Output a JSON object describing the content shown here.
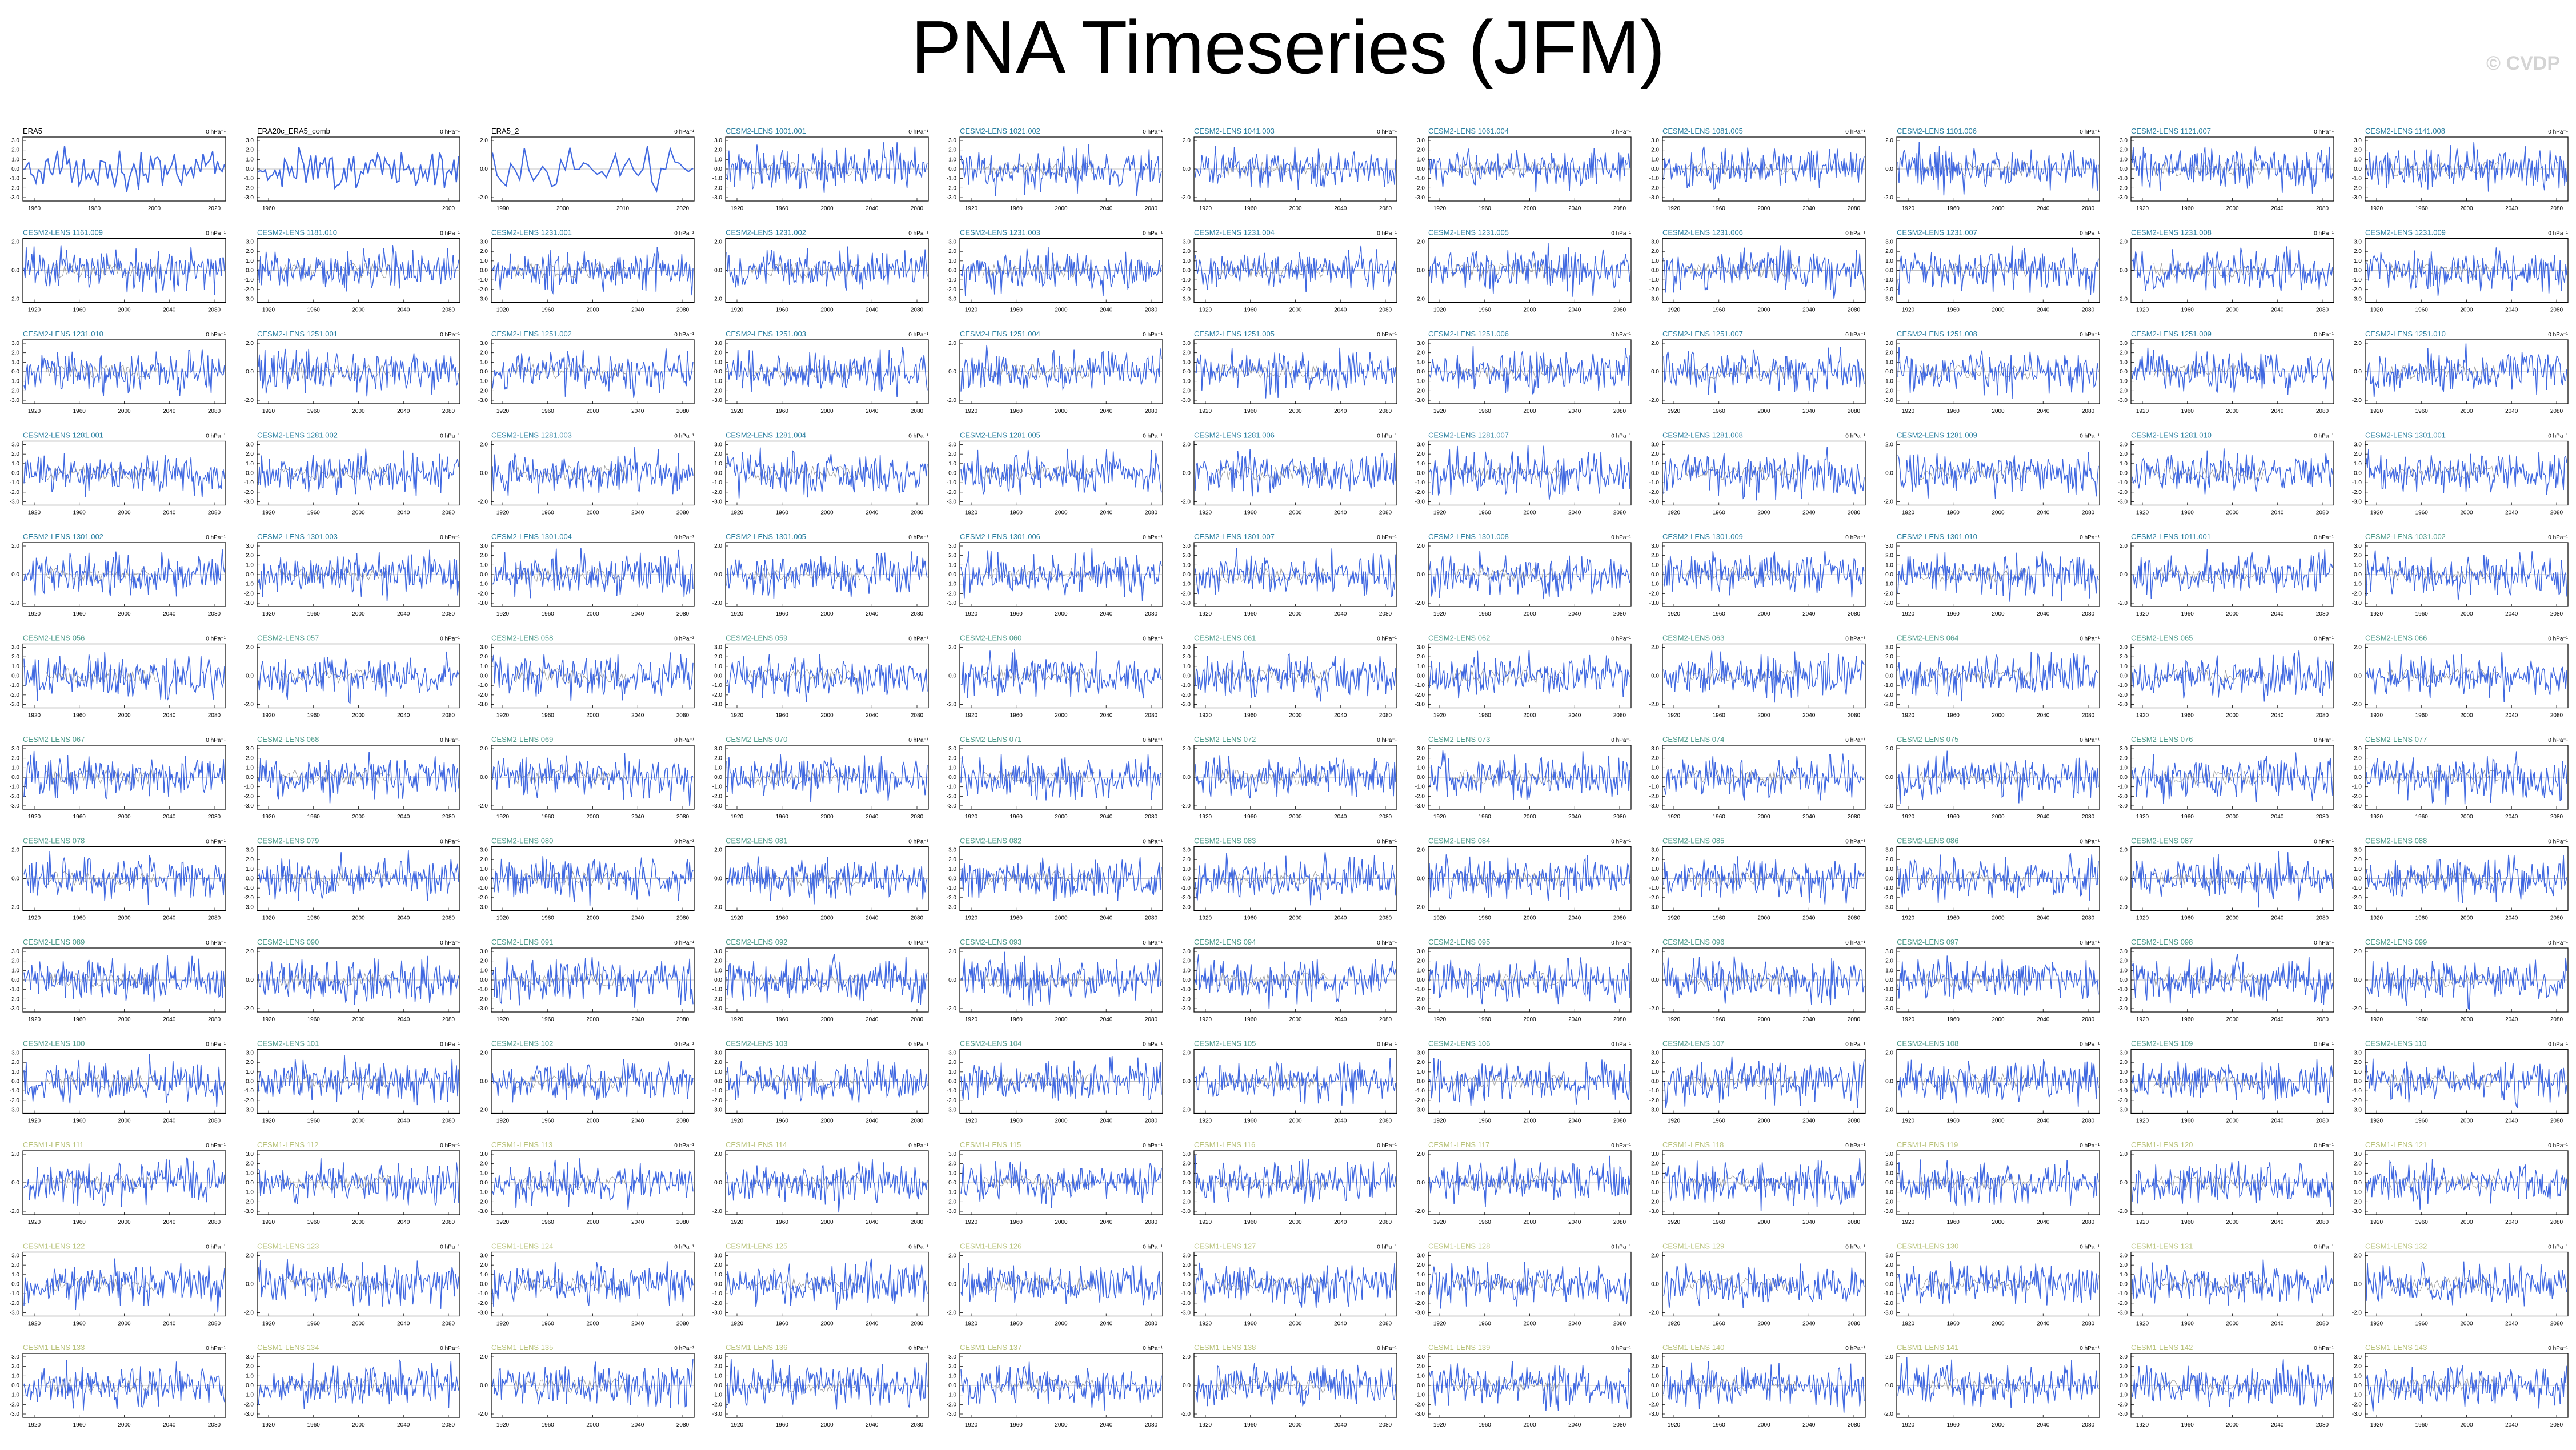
{
  "title": "PNA Timeseries (JFM)",
  "watermark": "© CVDP",
  "colors": {
    "line": "#4169e1",
    "ensmean": "#a0a0a0",
    "obs_title": "#000000",
    "cesm2_title": "#2a7fa0",
    "cesm2_title_b": "#4c9a8a",
    "cesm1_title": "#b8c27a",
    "frame": "#000000"
  },
  "chart_data": {
    "type": "line",
    "layout": "13 rows x 11 panels",
    "units": "0 hPa⁻¹",
    "panels_start_rows": [
      [
        "ERA5",
        "ERA20c_ERA5_comb",
        "ERA5_2",
        "CESM2-LENS 1001.001",
        "CESM2-LENS 1021.002",
        "CESM2-LENS 1041.003",
        "CESM2-LENS 1061.004",
        "CESM2-LENS 1081.005",
        "CESM2-LENS 1101.006",
        "CESM2-LENS 1121.007",
        "CESM2-LENS 1141.008"
      ],
      [
        "CESM2-LENS 1161.009",
        "CESM2-LENS 1181.010",
        "CESM2-LENS 1231.001",
        "CESM2-LENS 1231.002",
        "CESM2-LENS 1231.003",
        "CESM2-LENS 1231.004",
        "CESM2-LENS 1231.005",
        "CESM2-LENS 1231.006",
        "CESM2-LENS 1231.007",
        "CESM2-LENS 1231.008",
        "CESM2-LENS 1231.009"
      ],
      [
        "CESM2-LENS 1231.010",
        "CESM2-LENS 1251.001",
        "CESM2-LENS 1251.002",
        "CESM2-LENS 1251.003",
        "CESM2-LENS 1251.004",
        "CESM2-LENS 1251.005",
        "CESM2-LENS 1251.006",
        "CESM2-LENS 1251.007",
        "CESM2-LENS 1251.008",
        "CESM2-LENS 1251.009",
        "CESM2-LENS 1251.010"
      ],
      [
        "CESM2-LENS 1281.001",
        "CESM2-LENS 1281.002",
        "CESM2-LENS 1281.003",
        "CESM2-LENS 1281.004",
        "CESM2-LENS 1281.005",
        "CESM2-LENS 1281.006",
        "CESM2-LENS 1281.007",
        "CESM2-LENS 1281.008",
        "CESM2-LENS 1281.009",
        "CESM2-LENS 1281.010",
        "CESM2-LENS 1301.001"
      ],
      [
        "CESM2-LENS 1301.002",
        "CESM2-LENS 1301.003",
        "CESM2-LENS 1301.004",
        "CESM2-LENS 1301.005",
        "CESM2-LENS 1301.006",
        "CESM2-LENS 1301.007",
        "CESM2-LENS 1301.008",
        "CESM2-LENS 1301.009",
        "CESM2-LENS 1301.010",
        "CESM2-LENS 1011.001",
        "CESM2-LENS 1031.002"
      ]
    ],
    "panel_label_base": [
      "CESM2-LENS",
      "CESM1-LENS"
    ],
    "total_panels": 143,
    "x_ticks_obs": [
      "1960",
      "1980",
      "2000",
      "2020"
    ],
    "x_ticks_obs_2": [
      "1960",
      "2000"
    ],
    "x_ticks_obs_3": [
      "1990",
      "2000",
      "2010",
      "2020"
    ],
    "x_ticks_model": [
      "1920",
      "1960",
      "2000",
      "2040",
      "2080"
    ],
    "y_ticks": [
      "3.0",
      "2.0",
      "1.0",
      "0.0",
      "-1.0",
      "-2.0",
      "-3.0"
    ],
    "y_ticks_short": [
      "2.0",
      "0.0",
      "-2.0"
    ],
    "ylim": [
      -3.5,
      3.5
    ]
  }
}
